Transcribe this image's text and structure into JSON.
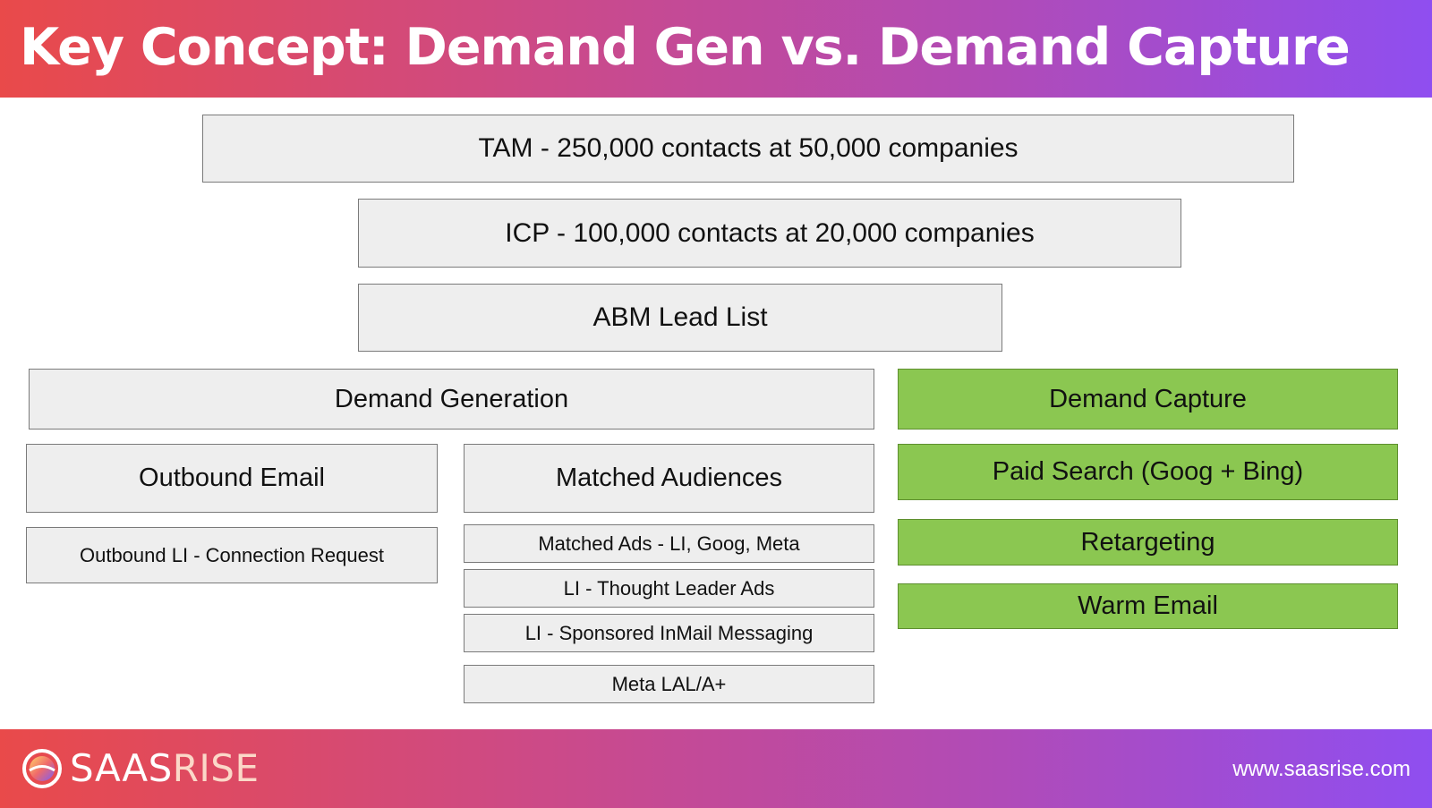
{
  "header": {
    "title": "Key Concept: Demand Gen vs. Demand Capture"
  },
  "funnel": {
    "tam": "TAM - 250,000 contacts at 50,000 companies",
    "icp": "ICP - 100,000 contacts at 20,000 companies",
    "abm": "ABM Lead List"
  },
  "demand_generation": {
    "label": "Demand Generation",
    "outbound_email": "Outbound Email",
    "outbound_li": "Outbound LI - Connection Request",
    "matched_audiences": "Matched Audiences",
    "tactics": [
      "Matched Ads - LI, Goog, Meta",
      "LI - Thought Leader Ads",
      "LI - Sponsored InMail Messaging",
      "Meta LAL/A+"
    ]
  },
  "demand_capture": {
    "label": "Demand Capture",
    "items": [
      "Paid Search (Goog + Bing)",
      "Retargeting",
      "Warm Email"
    ]
  },
  "footer": {
    "logo_saas": "SAAS",
    "logo_rise": "RISE",
    "url": "www.saasrise.com"
  },
  "colors": {
    "gray_box": "#eeeeee",
    "green_box": "#8bc751",
    "gradient_start": "#e94a4a",
    "gradient_end": "#8f4ef0"
  }
}
